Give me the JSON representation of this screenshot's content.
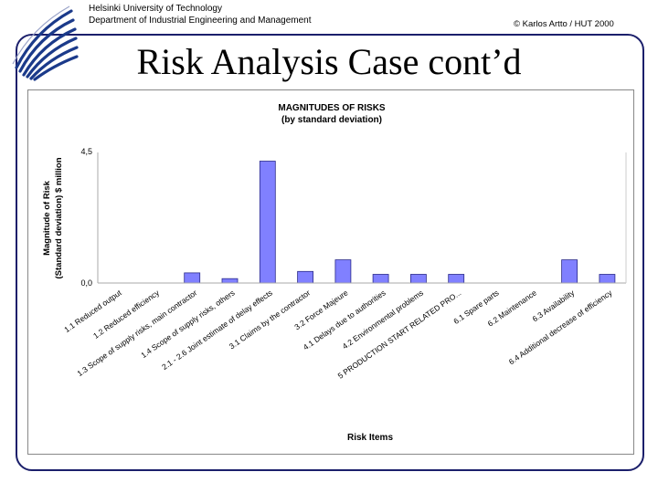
{
  "header": {
    "university": "Helsinki University of Technology",
    "department": "Department of Industrial Engineering and Management",
    "copyright": "© Karlos Artto / HUT 2000"
  },
  "slide": {
    "title": "Risk Analysis Case cont’d"
  },
  "colors": {
    "bar": "#8080ff",
    "bar_edge": "#2a2a8a",
    "frame": "#1b1f6b"
  },
  "chart_data": {
    "type": "bar",
    "title": "MAGNITUDES OF RISKS",
    "subtitle": "(by standard deviation)",
    "xlabel": "Risk Items",
    "ylabel_line1": "Magnitude of Risk",
    "ylabel_line2": "(Standard deviation) $ million",
    "ylim": [
      0,
      4.5
    ],
    "yticks": [
      "4,5",
      "0,0"
    ],
    "grid": false,
    "categories": [
      "1.1 Reduced output",
      "1.2 Reduced efficiency",
      "1.3 Scope of supply risks, main contractor",
      "1.4 Scope of supply risks, others",
      "2.1 - 2.6 Joint estimate of delay effects",
      "3.1 Claims by the contractor",
      "3.2 Force Majeure",
      "4.1 Delays due to authorities",
      "4.2 Environmental problems",
      "5 PRODUCTION START RELATED PRO...",
      "6.1 Spare parts",
      "6.2 Maintenance",
      "6.3 Availability",
      "6.4 Additional decrease of efficiency"
    ],
    "visible_labels": [
      "1.1 Reduced output",
      "1.2 Reduced efficiency",
      "1.3 Scope of supply risks, main contractor",
      "1.4 Scope of supply risks, others",
      "2.1 - 2.6 Joint estimate of delay effects",
      "3.1 Claims by the contractor",
      "3.2 Force Majeure",
      "4.1 Delays due to authorities",
      "4.2 Environmental problems",
      "5 PRODUCTION START RELATED PRO...",
      "6.1 Spare parts",
      "6.2 Maintenance",
      "6.3 Availability",
      "6.4 Additional decrease of efficiency"
    ],
    "values": [
      0,
      0,
      0.35,
      0.15,
      4.2,
      0.4,
      0.8,
      0.3,
      0.3,
      0.3,
      0,
      0,
      0.8,
      0.3
    ]
  }
}
